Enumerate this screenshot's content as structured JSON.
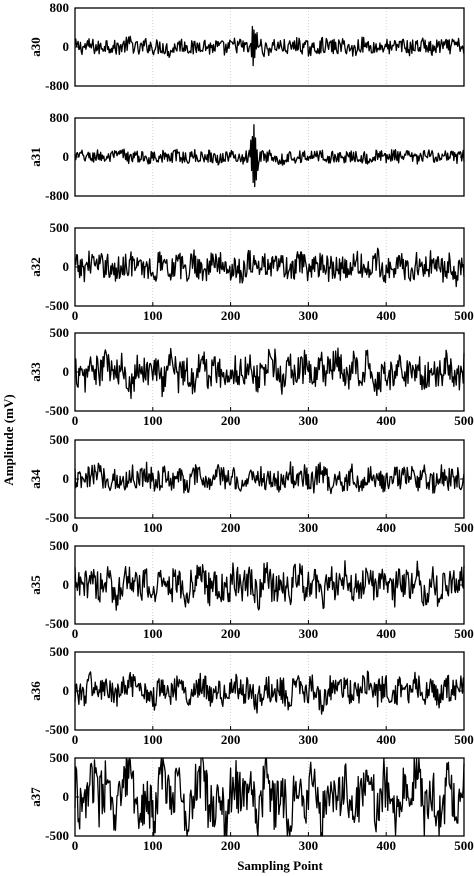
{
  "figure": {
    "ylabel": "Amplitude (mV)",
    "xlabel": "Sampling Point"
  },
  "chart_data": [
    {
      "type": "line",
      "panel": "a30",
      "ylim": [
        -800,
        800
      ],
      "yticks": [
        800,
        0,
        -800
      ],
      "xlim": [
        0,
        500
      ],
      "xticks": [],
      "grid": "vertical",
      "amplitude": 160,
      "burst": {
        "x": 230,
        "amplitude": 420
      },
      "values": [
        10,
        -5,
        25,
        -30,
        60,
        -20,
        15,
        80,
        -60,
        40,
        -10,
        20,
        -90,
        50,
        30,
        -40,
        70,
        -20,
        10,
        -50,
        45,
        20,
        -35,
        85,
        -70,
        30,
        10,
        -25,
        55,
        -15,
        -60,
        40,
        20,
        -10,
        35,
        -80,
        60,
        15,
        -20,
        30,
        -45,
        75,
        -30,
        10,
        50,
        -65,
        25,
        -5,
        40,
        -20
      ]
    },
    {
      "type": "line",
      "panel": "a31",
      "ylim": [
        -800,
        800
      ],
      "yticks": [
        800,
        0,
        -800
      ],
      "xlim": [
        0,
        500
      ],
      "xticks": [],
      "grid": "vertical",
      "amplitude": 130,
      "burst": {
        "x": 230,
        "amplitude": 780
      },
      "values": [
        5,
        20,
        -15,
        40,
        -35,
        10,
        60,
        -25,
        15,
        -45,
        30,
        10,
        -20,
        50,
        -40,
        25,
        -10,
        35,
        -55,
        20,
        15,
        -30,
        45,
        -20,
        10,
        40,
        -60,
        25,
        -15,
        30,
        -10,
        55,
        -35,
        20,
        -25,
        40,
        10,
        -45,
        30,
        -15,
        50,
        -20,
        25,
        -40,
        15,
        35,
        -30,
        10,
        -20,
        25
      ]
    },
    {
      "type": "line",
      "panel": "a32",
      "ylim": [
        -500,
        500
      ],
      "yticks": [
        500,
        0,
        -500
      ],
      "xlim": [
        0,
        500
      ],
      "xticks": [
        0,
        100,
        200,
        300,
        400,
        500
      ],
      "grid": "vertical",
      "amplitude": 170,
      "values": [
        20,
        -40,
        80,
        -10,
        50,
        -90,
        30,
        60,
        -30,
        10,
        -70,
        120,
        -20,
        40,
        -60,
        90,
        -50,
        20,
        70,
        -40,
        10,
        -80,
        110,
        -30,
        50,
        -20,
        60,
        -100,
        40,
        15,
        -55,
        85,
        -25,
        30,
        -70,
        50,
        20,
        -45,
        95,
        -35,
        10,
        60,
        -80,
        25,
        -15,
        70,
        -60,
        35,
        -90,
        40
      ]
    },
    {
      "type": "line",
      "panel": "a33",
      "ylim": [
        -500,
        500
      ],
      "yticks": [
        500,
        0,
        -500
      ],
      "xlim": [
        0,
        500
      ],
      "xticks": [
        0,
        100,
        200,
        300,
        400,
        500
      ],
      "grid": "vertical",
      "amplitude": 210,
      "values": [
        40,
        -120,
        90,
        -30,
        150,
        -80,
        60,
        -160,
        110,
        -20,
        70,
        -130,
        180,
        -60,
        30,
        -110,
        140,
        -50,
        90,
        -170,
        60,
        -20,
        120,
        -90,
        40,
        150,
        -130,
        70,
        -40,
        100,
        -150,
        60,
        -10,
        130,
        -100,
        80,
        -60,
        170,
        -120,
        30,
        -80,
        110,
        -40,
        90,
        -140,
        60,
        -20,
        120,
        -70,
        50
      ]
    },
    {
      "type": "line",
      "panel": "a34",
      "ylim": [
        -500,
        500
      ],
      "yticks": [
        500,
        0,
        -500
      ],
      "xlim": [
        0,
        500
      ],
      "xticks": [
        0,
        100,
        200,
        300,
        400,
        500
      ],
      "grid": "vertical",
      "amplitude": 150,
      "values": [
        10,
        -60,
        40,
        90,
        -30,
        20,
        -80,
        60,
        -10,
        110,
        -50,
        30,
        -20,
        70,
        -90,
        40,
        10,
        -60,
        80,
        -30,
        50,
        -100,
        30,
        60,
        -40,
        20,
        -70,
        90,
        -20,
        40,
        -50,
        130,
        -60,
        10,
        -30,
        70,
        -80,
        40,
        20,
        -60,
        90,
        -10,
        50,
        -40,
        30,
        -90,
        60,
        -20,
        40,
        -50
      ]
    },
    {
      "type": "line",
      "panel": "a35",
      "ylim": [
        -500,
        500
      ],
      "yticks": [
        500,
        0,
        -500
      ],
      "xlim": [
        0,
        500
      ],
      "xticks": [
        0,
        100,
        200,
        300,
        400,
        500
      ],
      "grid": "vertical",
      "amplitude": 210,
      "values": [
        30,
        -90,
        150,
        -40,
        80,
        -160,
        60,
        120,
        -70,
        20,
        -140,
        180,
        -50,
        90,
        -110,
        40,
        160,
        -80,
        10,
        -130,
        100,
        -30,
        70,
        -150,
        120,
        -60,
        40,
        -100,
        140,
        -20,
        80,
        -170,
        60,
        -40,
        110,
        -90,
        30,
        130,
        -60,
        90,
        -120,
        50,
        -10,
        150,
        -80,
        40,
        -140,
        70,
        -30,
        100
      ]
    },
    {
      "type": "line",
      "panel": "a36",
      "ylim": [
        -500,
        500
      ],
      "yticks": [
        500,
        0,
        -500
      ],
      "xlim": [
        0,
        500
      ],
      "xticks": [
        0,
        100,
        200,
        300,
        400,
        500
      ],
      "grid": "vertical",
      "amplitude": 170,
      "values": [
        20,
        -70,
        110,
        -30,
        60,
        -120,
        40,
        90,
        -50,
        10,
        -100,
        140,
        -40,
        70,
        -80,
        30,
        120,
        -60,
        20,
        -110,
        80,
        -20,
        50,
        -130,
        90,
        -40,
        30,
        -90,
        120,
        -10,
        60,
        -140,
        40,
        -30,
        100,
        -70,
        20,
        110,
        -50,
        70,
        -100,
        40,
        -20,
        130,
        -60,
        30,
        -110,
        50,
        -30,
        80
      ]
    },
    {
      "type": "line",
      "panel": "a37",
      "ylim": [
        -500,
        500
      ],
      "yticks": [
        500,
        0,
        -500
      ],
      "xlim": [
        0,
        500
      ],
      "xticks": [
        0,
        100,
        200,
        300,
        400,
        500
      ],
      "grid": "vertical",
      "amplitude": 330,
      "values": [
        120,
        -280,
        350,
        -90,
        200,
        -380,
        150,
        300,
        -220,
        60,
        -340,
        420,
        -120,
        250,
        -300,
        100,
        380,
        -200,
        40,
        -320,
        280,
        -80,
        180,
        -360,
        300,
        -140,
        90,
        -260,
        340,
        -50,
        220,
        -400,
        160,
        -100,
        310,
        -240,
        70,
        350,
        -180,
        260,
        -330,
        130,
        -60,
        390,
        -210,
        110,
        -300,
        200,
        -90,
        270
      ]
    }
  ]
}
